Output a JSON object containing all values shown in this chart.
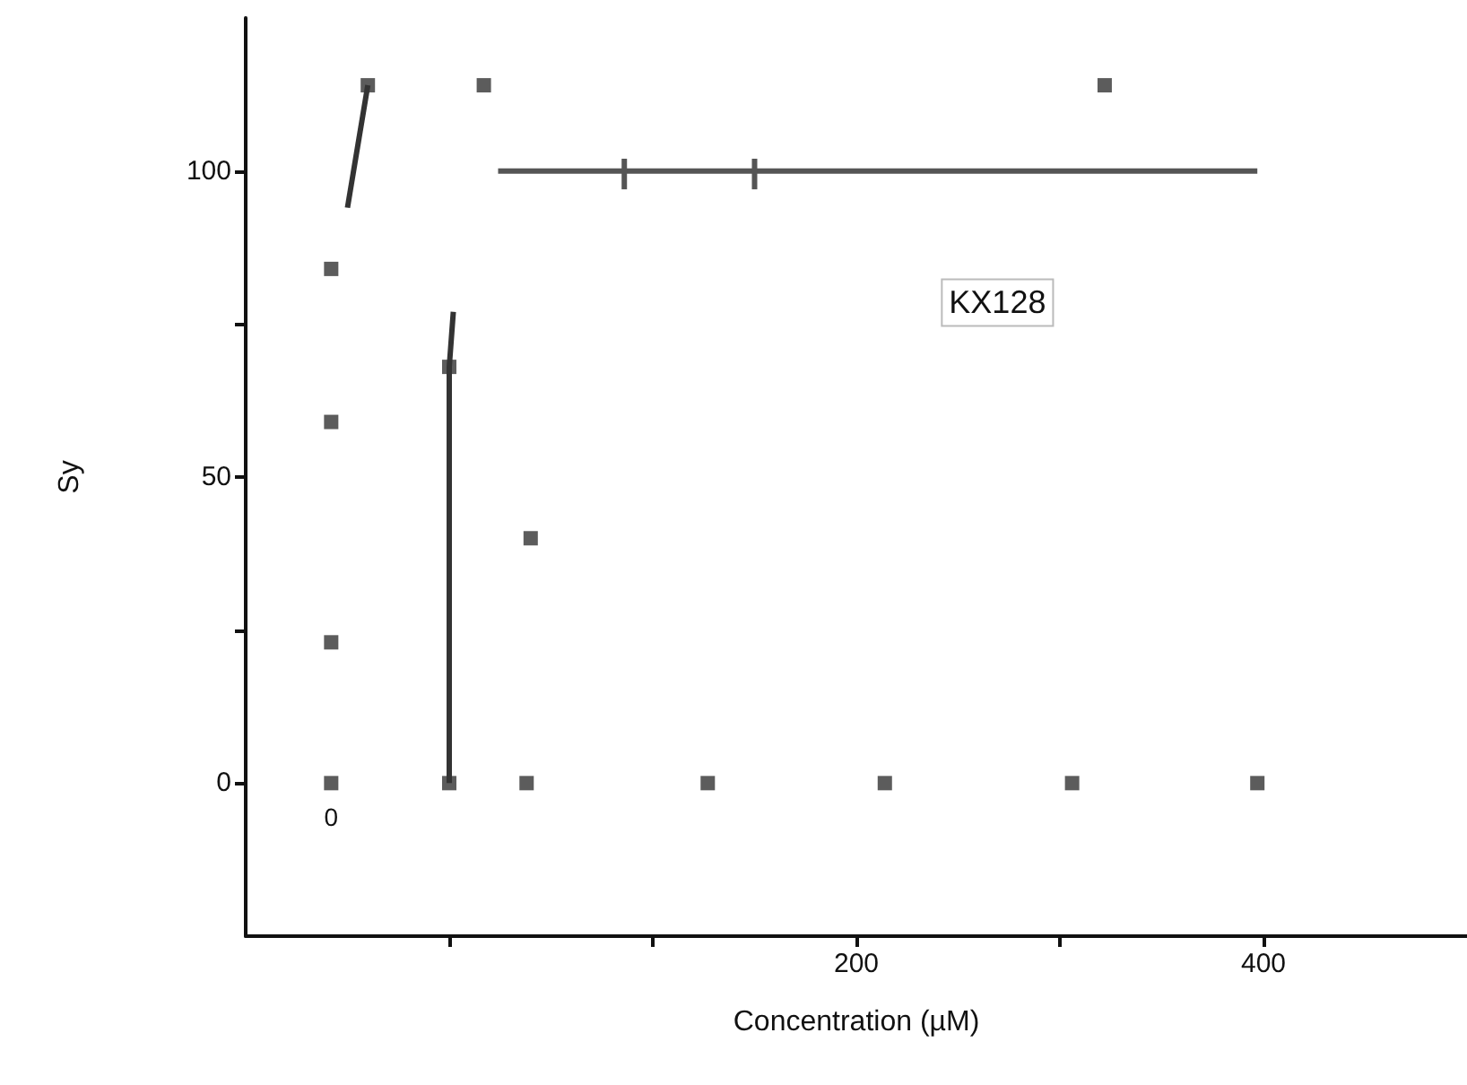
{
  "chart_data": {
    "type": "scatter",
    "xlabel": "Concentration (µM)",
    "ylabel": "Sy",
    "xlim": [
      -100,
      500
    ],
    "ylim": [
      -25,
      125
    ],
    "xticks": [
      {
        "value": 0,
        "label": null
      },
      {
        "value": 100,
        "label": null
      },
      200,
      {
        "value": 300,
        "label": null
      },
      400
    ],
    "yticks": [
      0,
      {
        "value": 25,
        "label": null
      },
      50,
      {
        "value": 75,
        "label": null
      },
      100
    ],
    "grid": false,
    "legend": false,
    "marker": "square",
    "series": [
      {
        "color": "#333333",
        "x": [
          -58,
          -58,
          -58,
          -58,
          38,
          127,
          214,
          306,
          397,
          17,
          322,
          40,
          0,
          -40,
          0
        ],
        "values": [
          0,
          23,
          59,
          84,
          0,
          0,
          0,
          0,
          0,
          114,
          114,
          40,
          0,
          114,
          68
        ]
      },
      {
        "type": "line",
        "marker": "none",
        "color": "#333333",
        "x": [
          -50,
          -40
        ],
        "values": [
          94,
          114
        ]
      },
      {
        "type": "line",
        "marker": "none",
        "color": "#333333",
        "x": [
          0,
          0,
          2
        ],
        "values": [
          0,
          68,
          77
        ]
      },
      {
        "type": "line",
        "marker": "none",
        "color": "#555555",
        "x": [
          24,
          397
        ],
        "values": [
          100,
          100
        ]
      },
      {
        "type": "line",
        "marker": "none",
        "color": "#555555",
        "x": [
          86,
          86
        ],
        "values": [
          97,
          102
        ]
      },
      {
        "type": "line",
        "marker": "none",
        "color": "#555555",
        "x": [
          150,
          150
        ],
        "values": [
          97,
          102
        ]
      }
    ],
    "annotations": [
      "KX128",
      "0"
    ]
  }
}
